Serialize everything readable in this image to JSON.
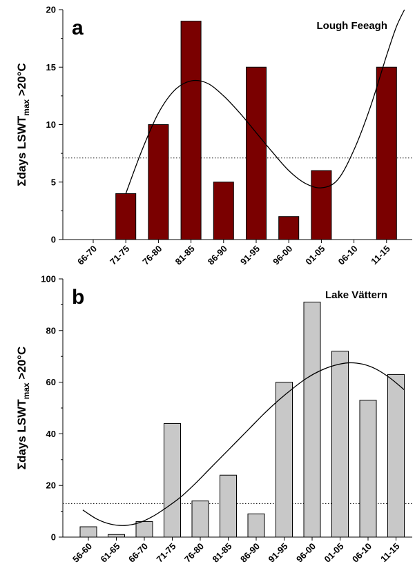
{
  "chart_data": [
    {
      "type": "bar",
      "panel_letter": "a",
      "title": "Lough Feeagh",
      "ylabel": {
        "sigma": "Σ",
        "main": "days LSWT",
        "sub": "max",
        "suffix": " >20°C"
      },
      "categories": [
        "66-70",
        "71-75",
        "76-80",
        "81-85",
        "86-90",
        "91-95",
        "96-00",
        "01-05",
        "06-10",
        "11-15"
      ],
      "values": [
        0,
        4,
        10,
        19,
        5,
        15,
        2,
        6,
        0,
        15
      ],
      "ylim": [
        0,
        20
      ],
      "yticks": [
        "0",
        "5",
        "10",
        "15",
        "20"
      ],
      "bar_color": "#7a0000",
      "reference_line": {
        "y": 7.1,
        "style": "dotted"
      },
      "trend_curve": {
        "x": [
          1,
          1.5,
          2,
          2.5,
          3,
          3.5,
          4,
          4.5,
          5,
          5.5,
          6,
          6.5,
          7,
          7.5,
          8,
          8.5,
          9,
          9.3,
          9.55
        ],
        "y": [
          4,
          7.8,
          11.0,
          13.0,
          13.8,
          13.6,
          12.5,
          11.0,
          9.3,
          7.6,
          6.0,
          4.9,
          4.5,
          5.2,
          7.8,
          11.5,
          16.0,
          18.5,
          20
        ]
      }
    },
    {
      "type": "bar",
      "panel_letter": "b",
      "title": "Lake Vättern",
      "ylabel": {
        "sigma": "Σ",
        "main": "days LSWT",
        "sub": "max",
        "suffix": " >20°C"
      },
      "categories": [
        "56-60",
        "61-65",
        "66-70",
        "71-75",
        "76-80",
        "81-85",
        "86-90",
        "91-95",
        "96-00",
        "01-05",
        "06-10",
        "11-15"
      ],
      "values": [
        4,
        1,
        6,
        44,
        14,
        24,
        9,
        60,
        91,
        72,
        53,
        63
      ],
      "ylim": [
        0,
        100
      ],
      "yticks": [
        "0",
        "20",
        "40",
        "60",
        "80",
        "100"
      ],
      "bar_color": "#c8c8c8",
      "reference_line": {
        "y": 13,
        "style": "dotted"
      },
      "trend_curve": {
        "x": [
          -0.2,
          0.3,
          0.8,
          1.3,
          1.8,
          2.3,
          2.8,
          3.3,
          3.8,
          4.3,
          4.8,
          5.3,
          5.8,
          6.3,
          6.8,
          7.3,
          7.8,
          8.3,
          8.8,
          9.3,
          9.8,
          10.3,
          10.8,
          11.3
        ],
        "y": [
          10.5,
          7,
          5,
          4.5,
          5.5,
          8,
          11.5,
          15.5,
          20.5,
          26,
          31.5,
          37,
          42.5,
          48,
          53,
          57.5,
          61.5,
          64.5,
          66.5,
          67.5,
          67,
          65,
          61.5,
          57
        ]
      }
    }
  ]
}
